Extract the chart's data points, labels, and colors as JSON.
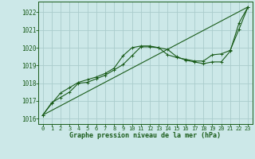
{
  "background_color": "#cce8e8",
  "grid_color": "#aacccc",
  "line_color": "#1a5c1a",
  "xlabel": "Graphe pression niveau de la mer (hPa)",
  "ylim": [
    1015.7,
    1022.6
  ],
  "yticks": [
    1016,
    1017,
    1018,
    1019,
    1020,
    1021,
    1022
  ],
  "xlim": [
    -0.5,
    23.5
  ],
  "xticks": [
    0,
    1,
    2,
    3,
    4,
    5,
    6,
    7,
    8,
    9,
    10,
    11,
    12,
    13,
    14,
    15,
    16,
    17,
    18,
    19,
    20,
    21,
    22,
    23
  ],
  "line1_x": [
    0,
    1,
    2,
    3,
    4,
    5,
    6,
    7,
    8,
    9,
    10,
    11,
    12,
    13,
    14,
    15,
    16,
    17,
    18,
    19,
    20,
    21,
    22,
    23
  ],
  "line1_y": [
    1016.2,
    1016.85,
    1017.45,
    1017.75,
    1018.05,
    1018.2,
    1018.35,
    1018.55,
    1018.85,
    1019.55,
    1020.0,
    1020.1,
    1020.1,
    1020.0,
    1019.6,
    1019.45,
    1019.35,
    1019.25,
    1019.25,
    1019.6,
    1019.65,
    1019.85,
    1021.05,
    1022.3
  ],
  "line2_x": [
    0,
    1,
    2,
    3,
    4,
    5,
    6,
    7,
    8,
    9,
    10,
    11,
    12,
    13,
    14,
    15,
    16,
    17,
    18,
    19,
    20,
    21,
    22,
    23
  ],
  "line2_y": [
    1016.2,
    1016.9,
    1017.2,
    1017.5,
    1018.0,
    1018.05,
    1018.25,
    1018.45,
    1018.75,
    1019.05,
    1019.55,
    1020.05,
    1020.05,
    1020.0,
    1019.9,
    1019.5,
    1019.3,
    1019.2,
    1019.1,
    1019.2,
    1019.2,
    1019.8,
    1021.4,
    1022.3
  ],
  "line3_x": [
    0,
    23
  ],
  "line3_y": [
    1016.2,
    1022.3
  ]
}
